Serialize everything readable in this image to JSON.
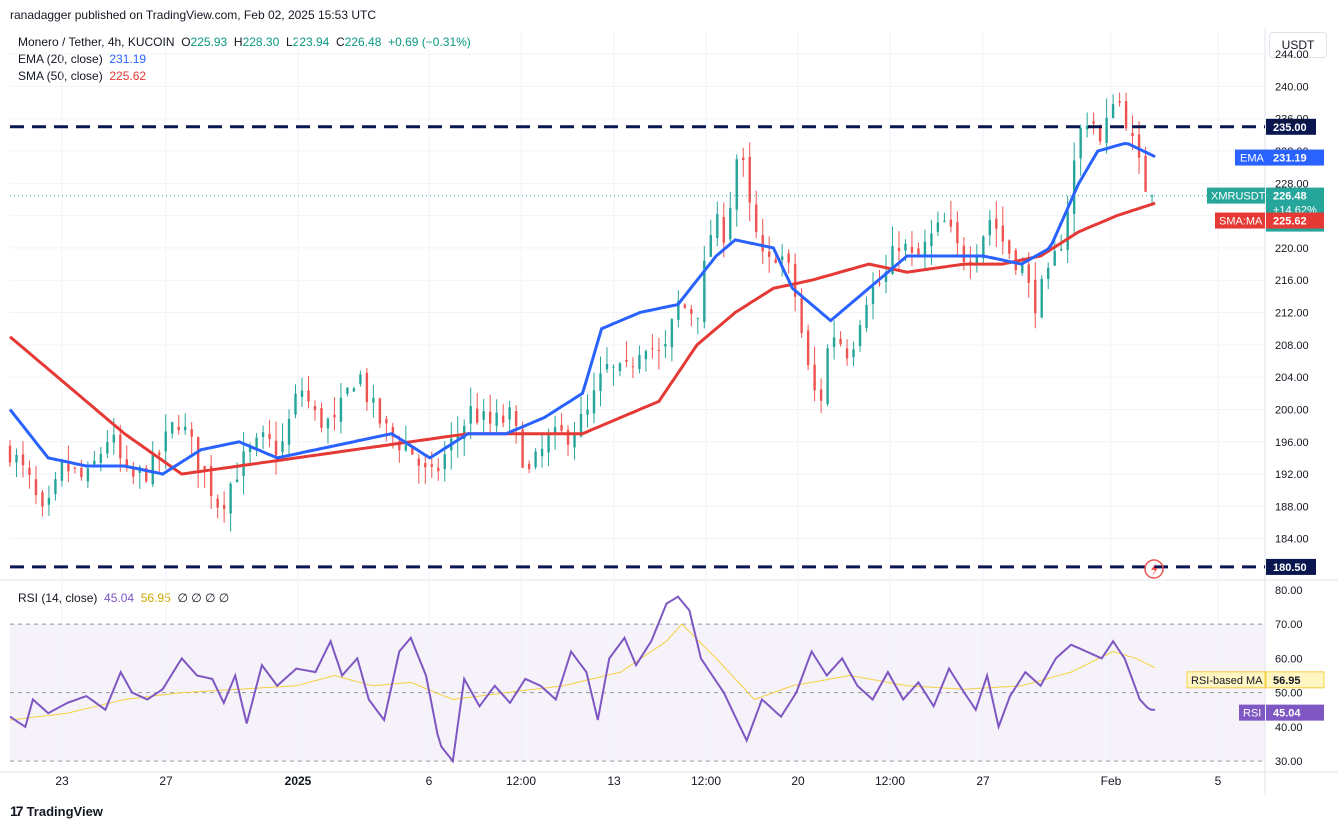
{
  "header": {
    "published": "ranadagger published on TradingView.com, Feb 02, 2025 15:53 UTC",
    "unit": "USDT",
    "brand": "TradingView"
  },
  "legend": {
    "symbol": "Monero / Tether, 4h, KUCOIN",
    "o_label": "O",
    "o": "225.93",
    "h_label": "H",
    "h": "228.30",
    "l_label": "L",
    "l": "223.94",
    "c_label": "C",
    "c": "226.48",
    "change": "+0.69 (+0.31%)",
    "ema_label": "EMA (20, close)",
    "ema_value": "231.19",
    "sma_label": "SMA (50, close)",
    "sma_value": "225.62",
    "rsi_label": "RSI (14, close)",
    "rsi_value": "45.04",
    "rsi_ma_value": "56.95",
    "rsi_extra": "∅ ∅ ∅ ∅"
  },
  "colors": {
    "up": "#26a69a",
    "down": "#ef5350",
    "ema": "#2962ff",
    "sma": "#e53935",
    "rsi": "#7e57c2",
    "rsi_ma": "#f5d142",
    "level": "#0a1650",
    "rsi_band": "#ede7f6"
  },
  "chart_data": [
    {
      "type": "candlestick",
      "title": "Monero / Tether, 4h, KUCOIN",
      "ylim": [
        179.5,
        245.5
      ],
      "y_ticks": [
        244,
        240,
        236,
        232,
        228,
        224,
        220,
        216,
        212,
        208,
        204,
        200,
        196,
        192,
        188,
        184
      ],
      "x_tick_labels": [
        "23",
        "27",
        "2025",
        "6",
        "12:00",
        "13",
        "12:00",
        "20",
        "12:00",
        "27",
        "Feb",
        "5"
      ],
      "horizontal_levels": [
        {
          "label": "235.00",
          "value": 235.0
        },
        {
          "label": "180.50",
          "value": 180.5
        }
      ],
      "price_tags": [
        {
          "label": "EMA",
          "value": "231.19"
        },
        {
          "label": "XMRUSDT",
          "value": "226.48",
          "change": "+14.62%",
          "countdown": "06:46"
        },
        {
          "label": "SMA:MA",
          "value": "225.62"
        }
      ],
      "close_path_keypoints": [
        [
          0,
          195
        ],
        [
          10,
          191
        ],
        [
          18,
          186
        ],
        [
          28,
          193
        ],
        [
          40,
          191
        ],
        [
          52,
          197
        ],
        [
          62,
          191
        ],
        [
          75,
          193
        ],
        [
          88,
          199
        ],
        [
          100,
          193
        ],
        [
          110,
          188
        ],
        [
          120,
          193
        ],
        [
          132,
          196
        ],
        [
          142,
          195
        ],
        [
          152,
          203
        ],
        [
          160,
          199
        ],
        [
          170,
          198
        ],
        [
          182,
          205
        ],
        [
          190,
          200
        ],
        [
          198,
          197
        ],
        [
          210,
          195
        ],
        [
          220,
          191
        ],
        [
          232,
          196
        ],
        [
          242,
          200
        ],
        [
          250,
          198
        ],
        [
          262,
          199
        ],
        [
          272,
          192
        ],
        [
          282,
          196
        ],
        [
          292,
          197
        ],
        [
          302,
          199
        ],
        [
          312,
          205
        ],
        [
          322,
          204
        ],
        [
          332,
          209
        ],
        [
          342,
          206
        ],
        [
          350,
          213
        ],
        [
          360,
          212
        ],
        [
          368,
          223
        ],
        [
          375,
          222
        ],
        [
          382,
          233
        ],
        [
          388,
          224
        ],
        [
          396,
          217
        ],
        [
          402,
          220
        ],
        [
          410,
          216
        ],
        [
          418,
          205
        ],
        [
          424,
          200
        ],
        [
          430,
          210
        ],
        [
          440,
          207
        ],
        [
          448,
          214
        ],
        [
          458,
          216
        ],
        [
          466,
          221
        ],
        [
          474,
          218
        ],
        [
          482,
          221
        ],
        [
          490,
          223
        ],
        [
          498,
          219
        ],
        [
          506,
          220
        ],
        [
          514,
          224
        ],
        [
          522,
          220
        ],
        [
          530,
          218
        ],
        [
          536,
          213
        ],
        [
          544,
          216
        ],
        [
          552,
          222
        ],
        [
          560,
          234
        ],
        [
          566,
          237
        ],
        [
          572,
          232
        ],
        [
          578,
          239
        ],
        [
          584,
          237
        ],
        [
          590,
          231
        ],
        [
          596,
          227
        ],
        [
          601,
          226.5
        ]
      ],
      "ema20_keypoints": [
        [
          0,
          200
        ],
        [
          20,
          194
        ],
        [
          40,
          193
        ],
        [
          60,
          193
        ],
        [
          80,
          192
        ],
        [
          100,
          195
        ],
        [
          120,
          196
        ],
        [
          140,
          194
        ],
        [
          160,
          195
        ],
        [
          180,
          196
        ],
        [
          200,
          197
        ],
        [
          220,
          194
        ],
        [
          240,
          197
        ],
        [
          260,
          197
        ],
        [
          280,
          199
        ],
        [
          300,
          202
        ],
        [
          310,
          210
        ],
        [
          330,
          212
        ],
        [
          350,
          213
        ],
        [
          370,
          219
        ],
        [
          380,
          221
        ],
        [
          400,
          220
        ],
        [
          410,
          215
        ],
        [
          430,
          211
        ],
        [
          450,
          215
        ],
        [
          470,
          219
        ],
        [
          490,
          219
        ],
        [
          510,
          219
        ],
        [
          530,
          218
        ],
        [
          545,
          220
        ],
        [
          560,
          228
        ],
        [
          570,
          232
        ],
        [
          585,
          233
        ],
        [
          601,
          231.19
        ]
      ],
      "sma50_keypoints": [
        [
          0,
          209
        ],
        [
          30,
          203
        ],
        [
          60,
          197
        ],
        [
          90,
          192
        ],
        [
          120,
          193
        ],
        [
          150,
          194
        ],
        [
          180,
          195
        ],
        [
          210,
          196
        ],
        [
          240,
          197
        ],
        [
          270,
          197
        ],
        [
          300,
          197
        ],
        [
          340,
          201
        ],
        [
          360,
          208
        ],
        [
          380,
          212
        ],
        [
          400,
          215
        ],
        [
          420,
          216
        ],
        [
          450,
          218
        ],
        [
          470,
          217
        ],
        [
          500,
          218
        ],
        [
          520,
          218
        ],
        [
          540,
          219
        ],
        [
          560,
          222
        ],
        [
          580,
          224
        ],
        [
          601,
          225.62
        ]
      ]
    },
    {
      "type": "line",
      "title": "RSI (14, close)",
      "ylim": [
        28,
        82
      ],
      "y_ticks": [
        80,
        70,
        60,
        50,
        40,
        30
      ],
      "band": [
        30,
        70
      ],
      "midline": 50,
      "series": [
        {
          "name": "RSI",
          "value": "45.04",
          "keypoints": [
            [
              0,
              43
            ],
            [
              8,
              40
            ],
            [
              12,
              48
            ],
            [
              20,
              44
            ],
            [
              30,
              47
            ],
            [
              40,
              49
            ],
            [
              50,
              45
            ],
            [
              58,
              56
            ],
            [
              64,
              50
            ],
            [
              72,
              48
            ],
            [
              80,
              51
            ],
            [
              90,
              60
            ],
            [
              98,
              55
            ],
            [
              106,
              54
            ],
            [
              112,
              47
            ],
            [
              118,
              55
            ],
            [
              124,
              41
            ],
            [
              132,
              58
            ],
            [
              140,
              52
            ],
            [
              150,
              57
            ],
            [
              160,
              56
            ],
            [
              168,
              65
            ],
            [
              174,
              55
            ],
            [
              182,
              60
            ],
            [
              188,
              48
            ],
            [
              196,
              42
            ],
            [
              204,
              62
            ],
            [
              210,
              66
            ],
            [
              218,
              55
            ],
            [
              225,
              35
            ],
            [
              232,
              30
            ],
            [
              238,
              54
            ],
            [
              246,
              46
            ],
            [
              254,
              52
            ],
            [
              262,
              47
            ],
            [
              270,
              54
            ],
            [
              278,
              52
            ],
            [
              286,
              48
            ],
            [
              294,
              62
            ],
            [
              302,
              56
            ],
            [
              308,
              42
            ],
            [
              314,
              60
            ],
            [
              322,
              66
            ],
            [
              328,
              58
            ],
            [
              336,
              65
            ],
            [
              344,
              76
            ],
            [
              350,
              78
            ],
            [
              356,
              74
            ],
            [
              362,
              60
            ],
            [
              368,
              55
            ],
            [
              374,
              50
            ],
            [
              380,
              43
            ],
            [
              386,
              36
            ],
            [
              394,
              48
            ],
            [
              404,
              43
            ],
            [
              412,
              50
            ],
            [
              420,
              62
            ],
            [
              428,
              55
            ],
            [
              436,
              60
            ],
            [
              444,
              52
            ],
            [
              452,
              48
            ],
            [
              460,
              56
            ],
            [
              468,
              48
            ],
            [
              476,
              53
            ],
            [
              484,
              46
            ],
            [
              492,
              57
            ],
            [
              500,
              50
            ],
            [
              506,
              45
            ],
            [
              512,
              55
            ],
            [
              518,
              40
            ],
            [
              524,
              49
            ],
            [
              532,
              56
            ],
            [
              540,
              52
            ],
            [
              548,
              60
            ],
            [
              556,
              64
            ],
            [
              564,
              62
            ],
            [
              572,
              60
            ],
            [
              578,
              65
            ],
            [
              584,
              60
            ],
            [
              592,
              48
            ],
            [
              597,
              45
            ],
            [
              601,
              45.04
            ]
          ]
        },
        {
          "name": "RSI-based MA",
          "value": "56.95",
          "keypoints": [
            [
              0,
              42
            ],
            [
              30,
              44
            ],
            [
              60,
              48
            ],
            [
              90,
              50
            ],
            [
              120,
              51
            ],
            [
              150,
              52
            ],
            [
              170,
              55
            ],
            [
              190,
              52
            ],
            [
              210,
              53
            ],
            [
              232,
              48
            ],
            [
              260,
              50
            ],
            [
              290,
              52
            ],
            [
              320,
              56
            ],
            [
              344,
              65
            ],
            [
              352,
              70
            ],
            [
              370,
              60
            ],
            [
              390,
              48
            ],
            [
              410,
              52
            ],
            [
              440,
              55
            ],
            [
              470,
              52
            ],
            [
              500,
              51
            ],
            [
              530,
              52
            ],
            [
              556,
              56
            ],
            [
              578,
              62
            ],
            [
              590,
              60
            ],
            [
              601,
              56.95
            ]
          ]
        }
      ]
    }
  ]
}
